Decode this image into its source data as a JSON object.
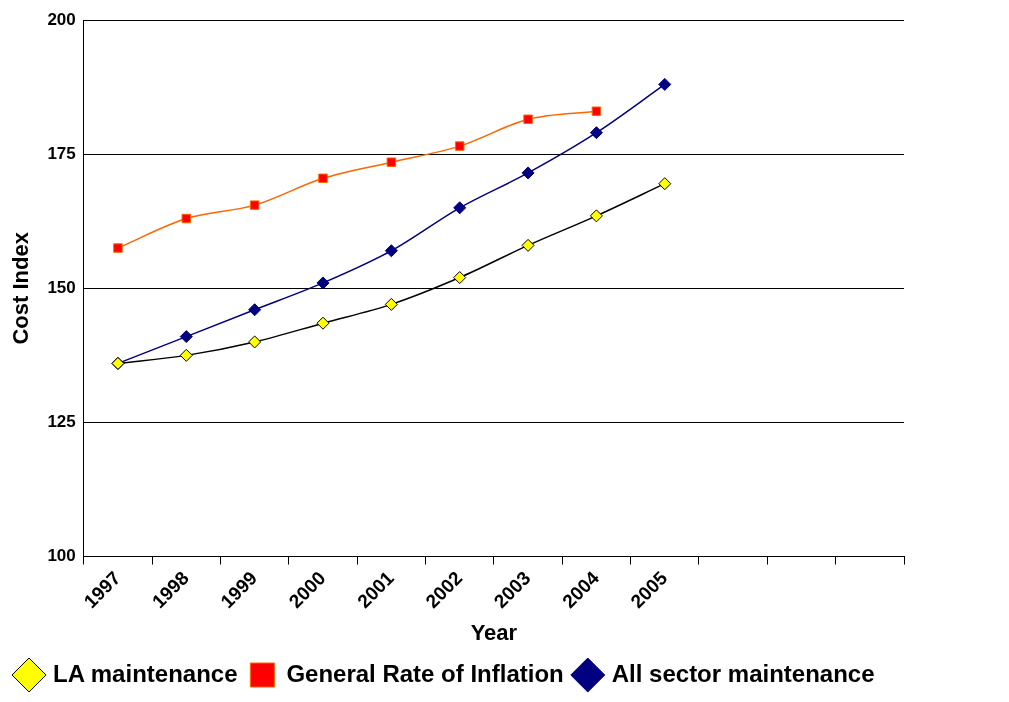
{
  "chart_data": {
    "type": "line",
    "xlabel": "Year",
    "ylabel": "Cost Index",
    "categories": [
      "1997",
      "1998",
      "1999",
      "2000",
      "2001",
      "2002",
      "2003",
      "2004",
      "2005",
      null,
      null,
      null
    ],
    "series": [
      {
        "name": "All sector maintenance",
        "color": "#000080",
        "marker": "diamond",
        "values": [
          136,
          141,
          146,
          151,
          157,
          165,
          171.5,
          179,
          188,
          null,
          null,
          null
        ]
      },
      {
        "name": "General Rate of Inflation",
        "color": "#ff6600",
        "marker": "square",
        "colors": [
          "#ff0000",
          "#ff0000",
          "#ff0000",
          "#ff0000",
          "#ff0000",
          "#ff0000",
          "#ff0000",
          "#ff0000",
          "#ff0000",
          "#ff0000",
          "#ff0000",
          "#ff0000"
        ],
        "values": [
          157.5,
          163,
          165.5,
          170.5,
          173.5,
          176.5,
          181.5,
          183,
          null,
          null,
          null,
          null
        ]
      },
      {
        "name": "LA maintenance",
        "color": "#000000",
        "marker": "diamond",
        "colors": [
          "#ffff00",
          "#ffff00",
          "#ffff00",
          "#ffff00",
          "#ffff00",
          "#ffff00",
          "#ffff00",
          "#ffff00",
          "#ffff00",
          "#ffff00",
          "#ffff00",
          "#ffff00"
        ],
        "values": [
          136,
          137.5,
          140,
          143.5,
          147,
          152,
          158,
          163.5,
          169.5,
          null,
          null,
          null
        ]
      }
    ],
    "ylim": [
      100,
      200
    ],
    "yticks": [
      100,
      125,
      150,
      175,
      200
    ],
    "grid": "y",
    "legend": "bottom",
    "line_style": "solid"
  }
}
